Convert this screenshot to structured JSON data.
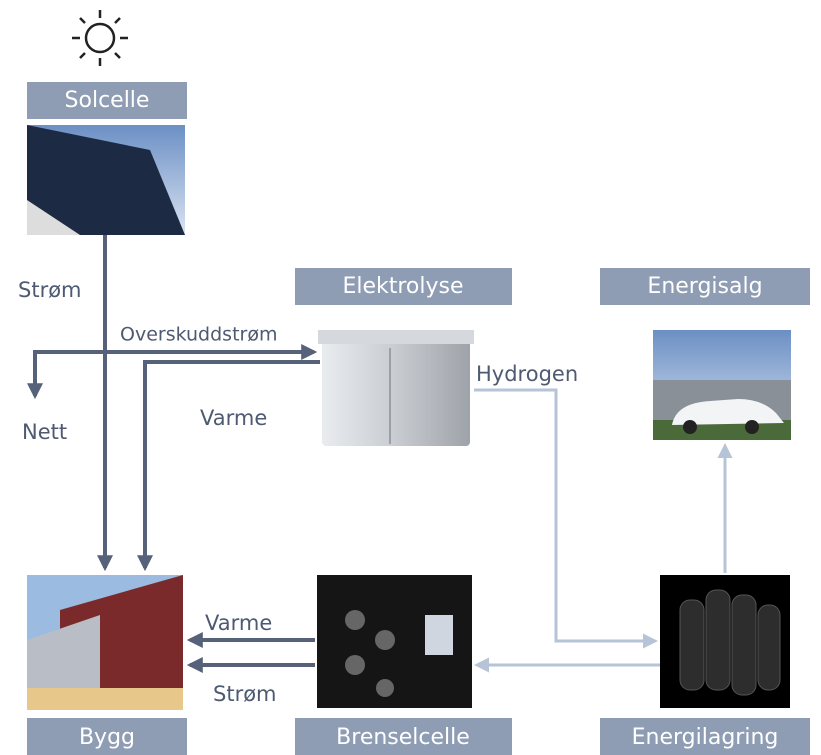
{
  "nodes": [
    {
      "label": "Solcelle"
    },
    {
      "label": "Elektrolyse"
    },
    {
      "label": "Energisalg"
    },
    {
      "label": "Bygg"
    },
    {
      "label": "Brenselcelle"
    },
    {
      "label": "Energilagring"
    }
  ],
  "edges": [
    {
      "label": "Strøm"
    },
    {
      "label": "Overskuddstrøm"
    },
    {
      "label": "Nett"
    },
    {
      "label": "Varme"
    },
    {
      "label": "Hydrogen"
    },
    {
      "label": "Varme"
    },
    {
      "label": "Strøm"
    }
  ]
}
